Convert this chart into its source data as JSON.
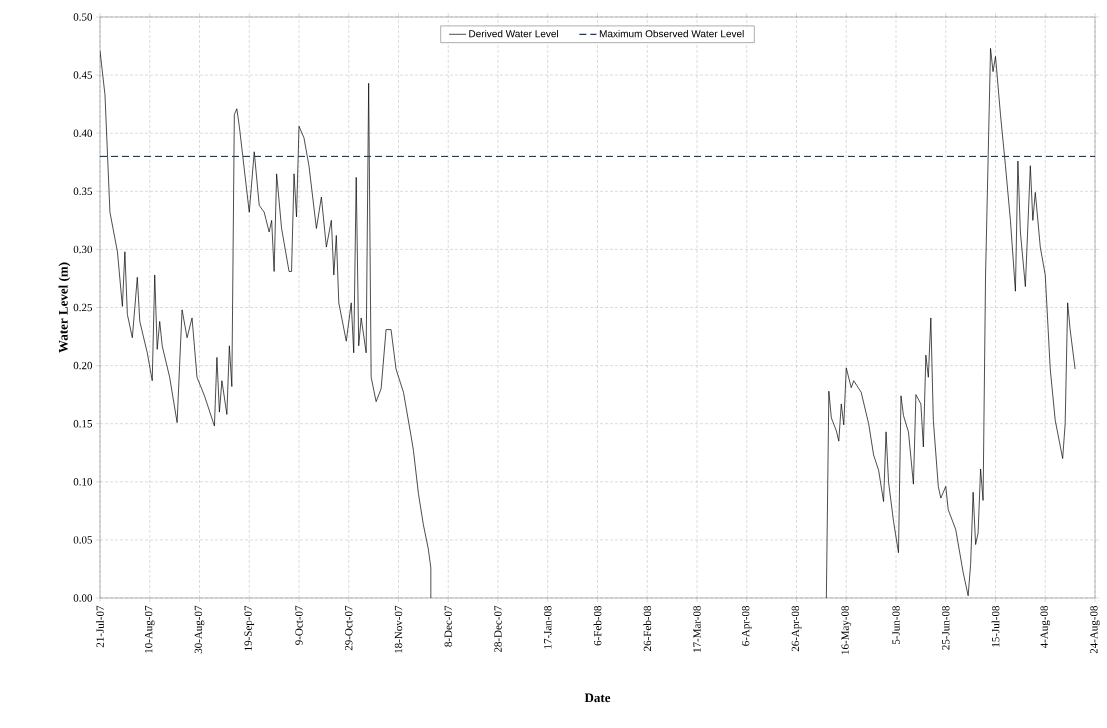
{
  "chart_data": {
    "type": "line",
    "xlabel": "Date",
    "ylabel": "Water Level (m)",
    "x": [
      "2007-07-21",
      "2007-07-23",
      "2007-07-25",
      "2007-07-28",
      "2007-07-30",
      "2007-07-31",
      "2007-08-01",
      "2007-08-03",
      "2007-08-05",
      "2007-08-06",
      "2007-08-09",
      "2007-08-11",
      "2007-08-12",
      "2007-08-13",
      "2007-08-14",
      "2007-08-15",
      "2007-08-18",
      "2007-08-21",
      "2007-08-22",
      "2007-08-23",
      "2007-08-25",
      "2007-08-27",
      "2007-08-29",
      "2007-09-01",
      "2007-09-05",
      "2007-09-06",
      "2007-09-07",
      "2007-09-08",
      "2007-09-10",
      "2007-09-11",
      "2007-09-12",
      "2007-09-13",
      "2007-09-14",
      "2007-09-15",
      "2007-09-17",
      "2007-09-19",
      "2007-09-21",
      "2007-09-23",
      "2007-09-25",
      "2007-09-27",
      "2007-09-28",
      "2007-09-29",
      "2007-09-30",
      "2007-10-02",
      "2007-10-05",
      "2007-10-06",
      "2007-10-07",
      "2007-10-08",
      "2007-10-09",
      "2007-10-11",
      "2007-10-13",
      "2007-10-16",
      "2007-10-18",
      "2007-10-20",
      "2007-10-22",
      "2007-10-23",
      "2007-10-24",
      "2007-10-25",
      "2007-10-28",
      "2007-10-30",
      "2007-10-31",
      "2007-11-01",
      "2007-11-02",
      "2007-11-03",
      "2007-11-05",
      "2007-11-06",
      "2007-11-07",
      "2007-11-09",
      "2007-11-11",
      "2007-11-13",
      "2007-11-15",
      "2007-11-17",
      "2007-11-20",
      "2007-11-23",
      "2007-11-24",
      "2007-11-26",
      "2007-11-28",
      "2007-11-30",
      "2007-12-01",
      "2007-12-01",
      "2008-02-01",
      "2008-05-08",
      "2008-05-09",
      "2008-05-10",
      "2008-05-12",
      "2008-05-13",
      "2008-05-14",
      "2008-05-15",
      "2008-05-16",
      "2008-05-18",
      "2008-05-19",
      "2008-05-22",
      "2008-05-25",
      "2008-05-27",
      "2008-05-29",
      "2008-05-31",
      "2008-06-01",
      "2008-06-02",
      "2008-06-04",
      "2008-06-06",
      "2008-06-07",
      "2008-06-08",
      "2008-06-10",
      "2008-06-12",
      "2008-06-13",
      "2008-06-15",
      "2008-06-16",
      "2008-06-17",
      "2008-06-18",
      "2008-06-19",
      "2008-06-20",
      "2008-06-22",
      "2008-06-23",
      "2008-06-25",
      "2008-06-26",
      "2008-06-29",
      "2008-07-02",
      "2008-07-04",
      "2008-07-05",
      "2008-07-06",
      "2008-07-07",
      "2008-07-08",
      "2008-07-09",
      "2008-07-10",
      "2008-07-11",
      "2008-07-13",
      "2008-07-14",
      "2008-07-15",
      "2008-07-17",
      "2008-07-19",
      "2008-07-21",
      "2008-07-23",
      "2008-07-24",
      "2008-07-25",
      "2008-07-27",
      "2008-07-29",
      "2008-07-30",
      "2008-07-31",
      "2008-08-02",
      "2008-08-04",
      "2008-08-06",
      "2008-08-08",
      "2008-08-11",
      "2008-08-12",
      "2008-08-13",
      "2008-08-14",
      "2008-08-16"
    ],
    "series": [
      {
        "name": "Derived Water Level",
        "color": "#000000",
        "values": [
          0.471,
          0.433,
          0.332,
          0.298,
          0.251,
          0.298,
          0.244,
          0.224,
          0.276,
          0.238,
          0.211,
          0.187,
          0.278,
          0.214,
          0.238,
          0.217,
          0.19,
          0.151,
          0.2,
          0.248,
          0.224,
          0.241,
          0.19,
          0.174,
          0.148,
          0.207,
          0.16,
          0.187,
          0.158,
          0.217,
          0.182,
          0.416,
          0.421,
          0.406,
          0.369,
          0.332,
          0.384,
          0.338,
          0.332,
          0.315,
          0.325,
          0.281,
          0.365,
          0.318,
          0.281,
          0.281,
          0.365,
          0.328,
          0.406,
          0.396,
          0.372,
          0.318,
          0.345,
          0.302,
          0.325,
          0.278,
          0.312,
          0.254,
          0.221,
          0.254,
          0.211,
          0.362,
          0.217,
          0.241,
          0.211,
          0.443,
          0.19,
          0.169,
          0.18,
          0.231,
          0.231,
          0.197,
          0.177,
          0.14,
          0.127,
          0.09,
          0.063,
          0.042,
          0.026,
          0.0,
          null,
          0.0,
          0.178,
          0.155,
          0.144,
          0.135,
          0.167,
          0.149,
          0.198,
          0.181,
          0.187,
          0.177,
          0.15,
          0.123,
          0.11,
          0.083,
          0.143,
          0.1,
          0.066,
          0.039,
          0.174,
          0.157,
          0.143,
          0.098,
          0.175,
          0.167,
          0.13,
          0.209,
          0.19,
          0.241,
          0.153,
          0.096,
          0.086,
          0.096,
          0.076,
          0.059,
          0.022,
          0.002,
          0.029,
          0.091,
          0.046,
          0.056,
          0.111,
          0.084,
          0.278,
          0.473,
          0.453,
          0.466,
          0.416,
          0.372,
          0.325,
          0.264,
          0.376,
          0.315,
          0.268,
          0.372,
          0.325,
          0.349,
          0.302,
          0.278,
          0.197,
          0.153,
          0.12,
          0.15,
          0.254,
          0.231,
          0.197
        ]
      }
    ],
    "ref_lines": [
      {
        "axis": "y",
        "value": 0.38,
        "label": "Maximum Observed Water Level",
        "color": "#1f3864",
        "line_style": "dashed"
      }
    ],
    "xlim": [
      "2007-07-21",
      "2008-08-24"
    ],
    "xticks": [
      {
        "value": "2007-07-21",
        "label": "21-Jul-07"
      },
      {
        "value": "2007-08-10",
        "label": "10-Aug-07"
      },
      {
        "value": "2007-08-30",
        "label": "30-Aug-07"
      },
      {
        "value": "2007-09-19",
        "label": "19-Sep-07"
      },
      {
        "value": "2007-10-09",
        "label": "9-Oct-07"
      },
      {
        "value": "2007-10-29",
        "label": "29-Oct-07"
      },
      {
        "value": "2007-11-18",
        "label": "18-Nov-07"
      },
      {
        "value": "2007-12-08",
        "label": "8-Dec-07"
      },
      {
        "value": "2007-12-28",
        "label": "28-Dec-07"
      },
      {
        "value": "2008-01-17",
        "label": "17-Jan-08"
      },
      {
        "value": "2008-02-06",
        "label": "6-Feb-08"
      },
      {
        "value": "2008-02-26",
        "label": "26-Feb-08"
      },
      {
        "value": "2008-03-17",
        "label": "17-Mar-08"
      },
      {
        "value": "2008-04-06",
        "label": "6-Apr-08"
      },
      {
        "value": "2008-04-26",
        "label": "26-Apr-08"
      },
      {
        "value": "2008-05-16",
        "label": "16-May-08"
      },
      {
        "value": "2008-06-05",
        "label": "5-Jun-08"
      },
      {
        "value": "2008-06-25",
        "label": "25-Jun-08"
      },
      {
        "value": "2008-07-15",
        "label": "15-Jul-08"
      },
      {
        "value": "2008-08-04",
        "label": "4-Aug-08"
      },
      {
        "value": "2008-08-24",
        "label": "24-Aug-08"
      }
    ],
    "ylim": [
      0,
      0.5
    ],
    "yticks": [
      {
        "value": 0,
        "label": "0.00"
      },
      {
        "value": 0.05,
        "label": "0.05"
      },
      {
        "value": 0.1,
        "label": "0.10"
      },
      {
        "value": 0.15,
        "label": "0.15"
      },
      {
        "value": 0.2,
        "label": "0.20"
      },
      {
        "value": 0.25,
        "label": "0.25"
      },
      {
        "value": 0.3,
        "label": "0.30"
      },
      {
        "value": 0.35,
        "label": "0.35"
      },
      {
        "value": 0.4,
        "label": "0.40"
      },
      {
        "value": 0.45,
        "label": "0.45"
      },
      {
        "value": 0.5,
        "label": "0.50"
      }
    ],
    "grid": true,
    "legend": "top"
  }
}
